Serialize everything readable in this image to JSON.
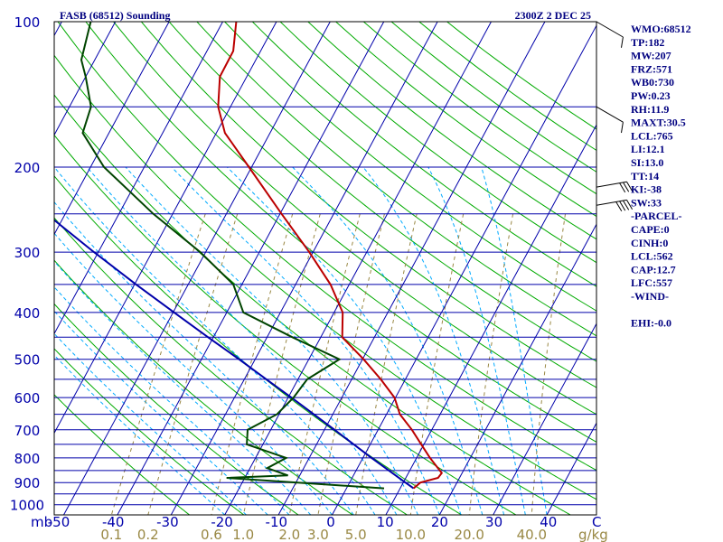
{
  "header": {
    "title": "FASB (68512) Sounding",
    "time": "2300Z  2 DEC 25"
  },
  "chart_data": {
    "type": "skew-t",
    "pressure_unit": "mb",
    "temperature_unit": "C",
    "mixing_ratio_unit": "g/kg",
    "pressure_ticks": [
      100,
      200,
      300,
      400,
      500,
      600,
      700,
      800,
      900,
      1000
    ],
    "temperature_ticks": [
      -50,
      -40,
      -30,
      -20,
      -10,
      0,
      10,
      20,
      30,
      40
    ],
    "mixing_ratio_ticks": [
      "0.1",
      "0.2",
      "0.6",
      "1.0",
      "2.0",
      "3.0",
      "5.0",
      "10.0",
      "20.0",
      "40.0"
    ],
    "temperature_tick_labels": [
      "-50",
      "-40",
      "-30",
      "-20",
      "-10",
      "0",
      "10",
      "20",
      "30",
      "40"
    ],
    "temperature_profile": [
      {
        "p": 925,
        "t": 12.5
      },
      {
        "p": 900,
        "t": 13.2
      },
      {
        "p": 880,
        "t": 16.0
      },
      {
        "p": 860,
        "t": 16.2
      },
      {
        "p": 800,
        "t": 12.5
      },
      {
        "p": 750,
        "t": 9.5
      },
      {
        "p": 700,
        "t": 6.3
      },
      {
        "p": 650,
        "t": 2.5
      },
      {
        "p": 600,
        "t": -0.2
      },
      {
        "p": 550,
        "t": -4.6
      },
      {
        "p": 500,
        "t": -9.8
      },
      {
        "p": 450,
        "t": -16.0
      },
      {
        "p": 400,
        "t": -18.4
      },
      {
        "p": 350,
        "t": -23.5
      },
      {
        "p": 300,
        "t": -30.7
      },
      {
        "p": 250,
        "t": -39.7
      },
      {
        "p": 200,
        "t": -50.5
      },
      {
        "p": 170,
        "t": -58.4
      },
      {
        "p": 150,
        "t": -62.3
      },
      {
        "p": 130,
        "t": -65.0
      },
      {
        "p": 115,
        "t": -65.1
      },
      {
        "p": 100,
        "t": -67.5
      }
    ],
    "dewpoint_profile": [
      {
        "p": 925,
        "t": 7.0
      },
      {
        "p": 880,
        "t": -23.4
      },
      {
        "p": 870,
        "t": -12.2
      },
      {
        "p": 840,
        "t": -16.8
      },
      {
        "p": 800,
        "t": -14.3
      },
      {
        "p": 750,
        "t": -23.0
      },
      {
        "p": 700,
        "t": -24.3
      },
      {
        "p": 650,
        "t": -20.4
      },
      {
        "p": 600,
        "t": -19.0
      },
      {
        "p": 550,
        "t": -18.3
      },
      {
        "p": 500,
        "t": -14.3
      },
      {
        "p": 450,
        "t": -25.3
      },
      {
        "p": 400,
        "t": -36.9
      },
      {
        "p": 350,
        "t": -41.6
      },
      {
        "p": 300,
        "t": -51.0
      },
      {
        "p": 250,
        "t": -63.6
      },
      {
        "p": 200,
        "t": -77.5
      },
      {
        "p": 170,
        "t": -84.9
      },
      {
        "p": 150,
        "t": -86.0
      },
      {
        "p": 130,
        "t": -90.0
      },
      {
        "p": 120,
        "t": -92.5
      },
      {
        "p": 100,
        "t": -94.6
      }
    ],
    "parcel_profile": [
      {
        "p": 925,
        "t": 12.5
      },
      {
        "p": 900,
        "t": 10.4
      },
      {
        "p": 800,
        "t": 1.6
      },
      {
        "p": 700,
        "t": -8.1
      },
      {
        "p": 600,
        "t": -19.4
      },
      {
        "p": 550,
        "t": -25.9
      },
      {
        "p": 500,
        "t": -33.0
      },
      {
        "p": 450,
        "t": -41.0
      },
      {
        "p": 400,
        "t": -49.8
      },
      {
        "p": 350,
        "t": -59.7
      },
      {
        "p": 300,
        "t": -70.8
      },
      {
        "p": 250,
        "t": -83.5
      },
      {
        "p": 200,
        "t": -98.3
      },
      {
        "p": 150,
        "t": -116.1
      },
      {
        "p": 100,
        "t": -139.0
      }
    ],
    "wind_barbs": [
      {
        "p": 100,
        "speed_kt": 10,
        "dir": 300
      },
      {
        "p": 150,
        "speed_kt": 10,
        "dir": 300
      },
      {
        "p": 220,
        "speed_kt": 30,
        "dir": 260
      },
      {
        "p": 240,
        "speed_kt": 40,
        "dir": 260
      }
    ]
  },
  "indices": [
    "WMO:68512",
    "TP:182",
    "MW:207",
    "FRZ:571",
    "WB0:730",
    "PW:0.23",
    "RH:11.9",
    "MAXT:30.5",
    "LCL:765",
    "LI:12.1",
    "SI:13.0",
    "TT:14",
    "KI:-38",
    "SW:33",
    "-PARCEL-",
    "CAPE:0",
    "CINH:0",
    "LCL:562",
    "CAP:12.7",
    "LFC:557",
    "-WIND-",
    "",
    "EHI:-0.0"
  ],
  "colors": {
    "isobar": "#0000aa",
    "isotherm": "#0000aa",
    "dry_adiabat": "#00aa00",
    "moist_adiabat": "#00aaff",
    "mixing_ratio": "#998844",
    "temperature": "#bb0000",
    "dewpoint": "#004400",
    "parcel": "#0000aa",
    "text": "#000080",
    "mixing_label": "#998844"
  }
}
